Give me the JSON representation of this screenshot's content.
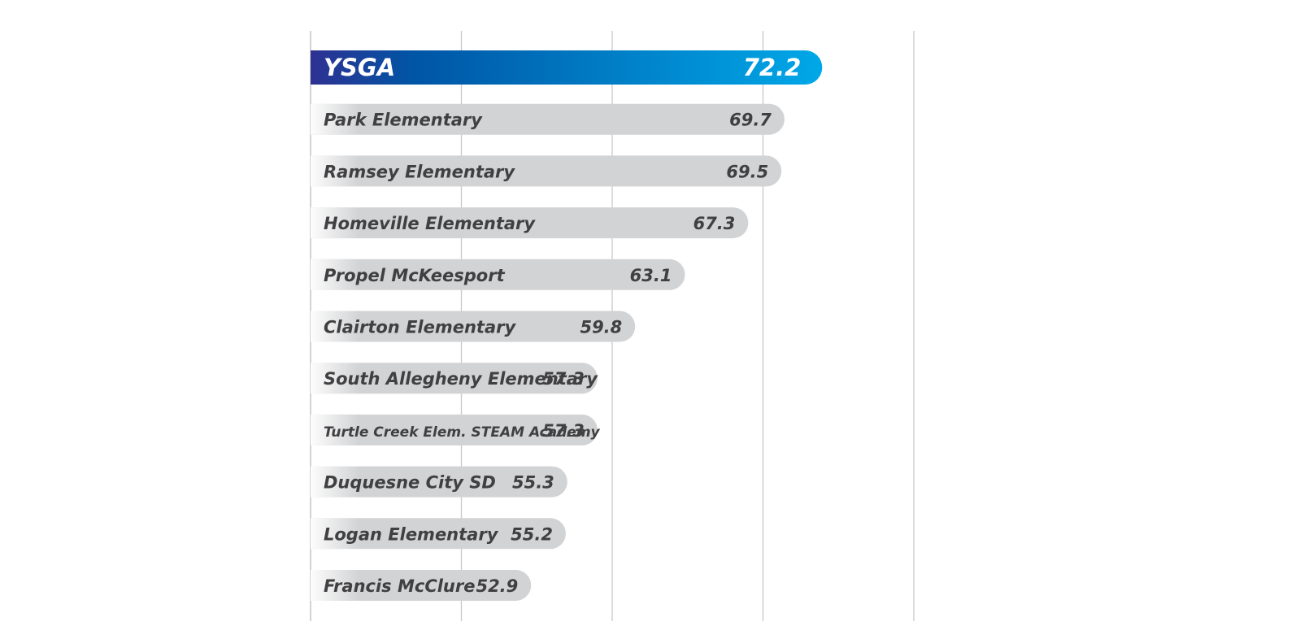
{
  "chart_data": {
    "type": "bar",
    "orientation": "horizontal",
    "categories": [
      "YSGA",
      "Park Elementary",
      "Ramsey Elementary",
      "Homeville Elementary",
      "Propel McKeesport",
      "Clairton Elementary",
      "South Allegheny Elementary",
      "Turtle Creek Elem. STEAM Academy",
      "Duquesne City SD",
      "Logan Elementary",
      "Francis McClure"
    ],
    "values": [
      72.2,
      69.7,
      69.5,
      67.3,
      63.1,
      59.8,
      57.3,
      57.3,
      55.3,
      55.2,
      52.9
    ],
    "value_labels": [
      "72.2",
      "69.7",
      "69.5",
      "67.3",
      "63.1",
      "59.8",
      "57.3",
      "57.3",
      "55.3",
      "55.2",
      "52.9"
    ],
    "highlight_index": 0,
    "xlim": [
      40,
      80
    ],
    "gridlines_at": [
      40,
      50,
      60,
      70,
      80
    ],
    "grid": true,
    "legend": "none",
    "title": "",
    "xlabel": "",
    "ylabel": "",
    "colors": {
      "highlight_start": "#2e3192",
      "highlight_mid": "#0055a5",
      "highlight_end": "#00a8e8",
      "bar_gray": "#d2d3d5",
      "text_dark": "#404042",
      "text_light": "#ffffff",
      "gridline": "#c8c8c8"
    }
  }
}
